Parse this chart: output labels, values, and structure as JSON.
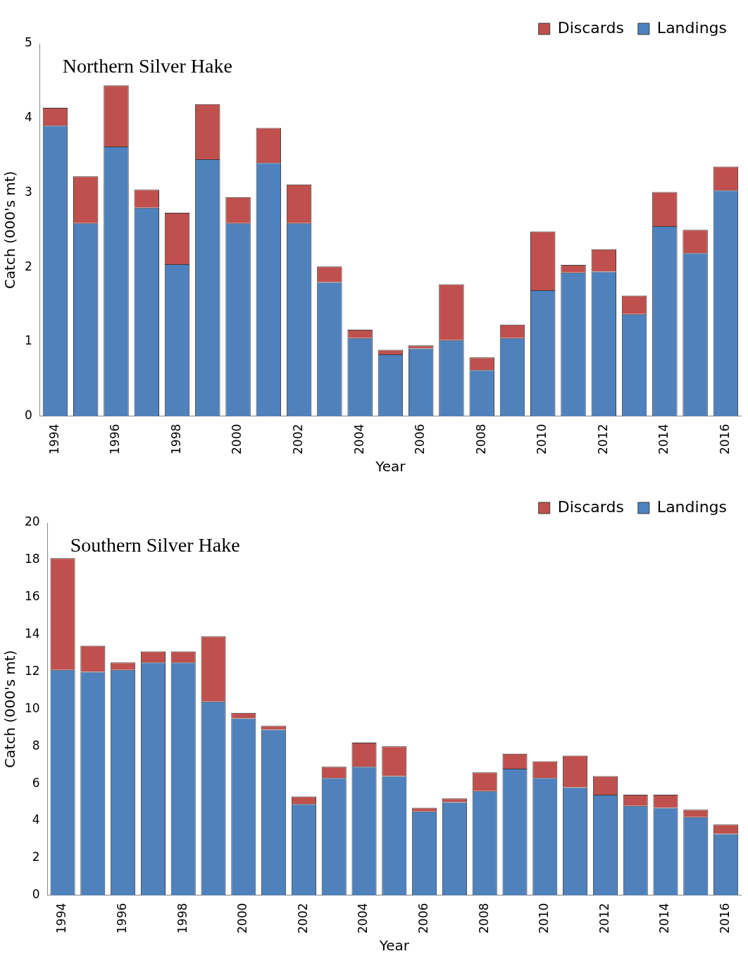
{
  "chart_data": [
    {
      "type": "bar",
      "title": "Northern Silver Hake",
      "xlabel": "Year",
      "ylabel": "Catch (000's mt)",
      "stacked": true,
      "legend": "top right",
      "grid": false,
      "categories": [
        "1994",
        null,
        "1996",
        null,
        "1998",
        null,
        "2000",
        null,
        "2002",
        null,
        "2004",
        null,
        "2006",
        null,
        "2008",
        null,
        "2010",
        null,
        "2012",
        null,
        "2014",
        null,
        "2016"
      ],
      "ylim": [
        0,
        5
      ],
      "yticks": [
        0,
        1,
        2,
        3,
        4,
        5
      ],
      "series": [
        {
          "name": "Landings",
          "color": "#4f81bd",
          "values": [
            3.9,
            2.59,
            3.62,
            2.8,
            2.04,
            3.45,
            2.59,
            3.4,
            2.59,
            1.8,
            1.05,
            0.83,
            0.91,
            1.02,
            0.62,
            1.05,
            1.69,
            1.93,
            1.94,
            1.37,
            2.55,
            2.19,
            3.03
          ]
        },
        {
          "name": "Discards",
          "color": "#c0504d",
          "values": [
            0.24,
            0.63,
            0.82,
            0.24,
            0.69,
            0.74,
            0.35,
            0.47,
            0.52,
            0.21,
            0.11,
            0.06,
            0.04,
            0.75,
            0.17,
            0.18,
            0.79,
            0.1,
            0.3,
            0.25,
            0.46,
            0.31,
            0.32
          ]
        }
      ]
    },
    {
      "type": "bar",
      "title": "Southern Silver Hake",
      "xlabel": "Year",
      "ylabel": "Catch (000's mt)",
      "stacked": true,
      "legend": "top right",
      "grid": false,
      "categories": [
        "1994",
        null,
        "1996",
        null,
        "1998",
        null,
        "2000",
        null,
        "2002",
        null,
        "2004",
        null,
        "2006",
        null,
        "2008",
        null,
        "2010",
        null,
        "2012",
        null,
        "2014",
        null,
        "2016"
      ],
      "ylim": [
        0,
        20
      ],
      "yticks": [
        0,
        2,
        4,
        6,
        8,
        10,
        12,
        14,
        16,
        18,
        20
      ],
      "series": [
        {
          "name": "Landings",
          "color": "#4f81bd",
          "values": [
            12.1,
            12.0,
            12.1,
            12.5,
            12.5,
            10.4,
            9.5,
            8.9,
            4.9,
            6.3,
            6.9,
            6.4,
            4.5,
            5.0,
            5.6,
            6.8,
            6.3,
            5.8,
            5.4,
            4.8,
            4.7,
            4.2,
            3.3
          ]
        },
        {
          "name": "Discards",
          "color": "#c0504d",
          "values": [
            6.0,
            1.4,
            0.4,
            0.6,
            0.6,
            3.5,
            0.3,
            0.2,
            0.4,
            0.6,
            1.3,
            1.6,
            0.2,
            0.2,
            1.0,
            0.8,
            0.9,
            1.7,
            1.0,
            0.6,
            0.7,
            0.4,
            0.5
          ]
        }
      ]
    }
  ]
}
